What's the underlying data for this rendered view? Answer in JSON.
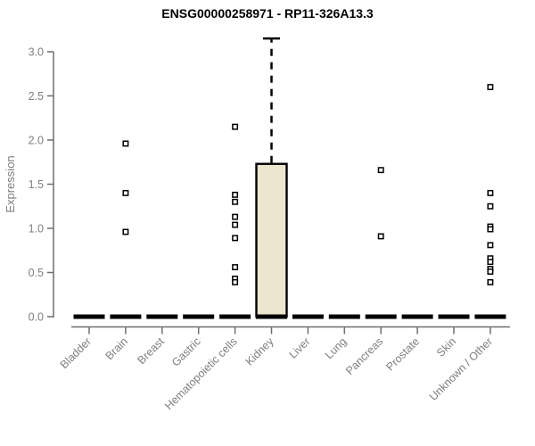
{
  "chart_data": {
    "type": "boxplot",
    "title": "ENSG00000258971 - RP11-326A13.3",
    "ylabel": "Expression",
    "xlabel": "",
    "ylim": [
      0.0,
      3.2
    ],
    "yticks": [
      0.0,
      0.5,
      1.0,
      1.5,
      2.0,
      2.5,
      3.0
    ],
    "grid": false,
    "legend": false,
    "categories": [
      "Bladder",
      "Brain",
      "Breast",
      "Gastric",
      "Hematopoietic cells",
      "Kidney",
      "Liver",
      "Lung",
      "Pancreas",
      "Prostate",
      "Skin",
      "Unknown / Other"
    ],
    "boxes": [
      {
        "category": "Bladder",
        "q1": 0,
        "median": 0,
        "q3": 0,
        "whisker_low": 0,
        "whisker_high": 0,
        "outliers": []
      },
      {
        "category": "Brain",
        "q1": 0,
        "median": 0,
        "q3": 0,
        "whisker_low": 0,
        "whisker_high": 0,
        "outliers": [
          1.96,
          1.4,
          0.96
        ]
      },
      {
        "category": "Breast",
        "q1": 0,
        "median": 0,
        "q3": 0,
        "whisker_low": 0,
        "whisker_high": 0,
        "outliers": []
      },
      {
        "category": "Gastric",
        "q1": 0,
        "median": 0,
        "q3": 0,
        "whisker_low": 0,
        "whisker_high": 0,
        "outliers": []
      },
      {
        "category": "Hematopoietic cells",
        "q1": 0,
        "median": 0,
        "q3": 0,
        "whisker_low": 0,
        "whisker_high": 0,
        "outliers": [
          2.15,
          1.38,
          1.3,
          1.13,
          1.04,
          0.89,
          0.56,
          0.43,
          0.39
        ]
      },
      {
        "category": "Kidney",
        "q1": 0,
        "median": 0,
        "q3": 1.73,
        "whisker_low": 0,
        "whisker_high": 3.15,
        "outliers": []
      },
      {
        "category": "Liver",
        "q1": 0,
        "median": 0,
        "q3": 0,
        "whisker_low": 0,
        "whisker_high": 0,
        "outliers": []
      },
      {
        "category": "Lung",
        "q1": 0,
        "median": 0,
        "q3": 0,
        "whisker_low": 0,
        "whisker_high": 0,
        "outliers": []
      },
      {
        "category": "Pancreas",
        "q1": 0,
        "median": 0,
        "q3": 0,
        "whisker_low": 0,
        "whisker_high": 0,
        "outliers": [
          1.66,
          0.91
        ]
      },
      {
        "category": "Prostate",
        "q1": 0,
        "median": 0,
        "q3": 0,
        "whisker_low": 0,
        "whisker_high": 0,
        "outliers": []
      },
      {
        "category": "Skin",
        "q1": 0,
        "median": 0,
        "q3": 0,
        "whisker_low": 0,
        "whisker_high": 0,
        "outliers": []
      },
      {
        "category": "Unknown / Other",
        "q1": 0,
        "median": 0,
        "q3": 0,
        "whisker_low": 0,
        "whisker_high": 0,
        "outliers": [
          2.6,
          1.4,
          1.25,
          1.02,
          0.99,
          0.81,
          0.66,
          0.62,
          0.54,
          0.51,
          0.39
        ]
      }
    ],
    "colors": {
      "background": "#ffffff",
      "box_fill": "#ebe6cd",
      "box_border": "#000000",
      "median_color": "#000000",
      "whisker_color": "#000000",
      "outlier_fill": "#ffffff",
      "outlier_border": "#000000",
      "axis_line": "#6e6e6e",
      "axis_text": "#7e7e7e",
      "title_color": "#000000"
    }
  }
}
